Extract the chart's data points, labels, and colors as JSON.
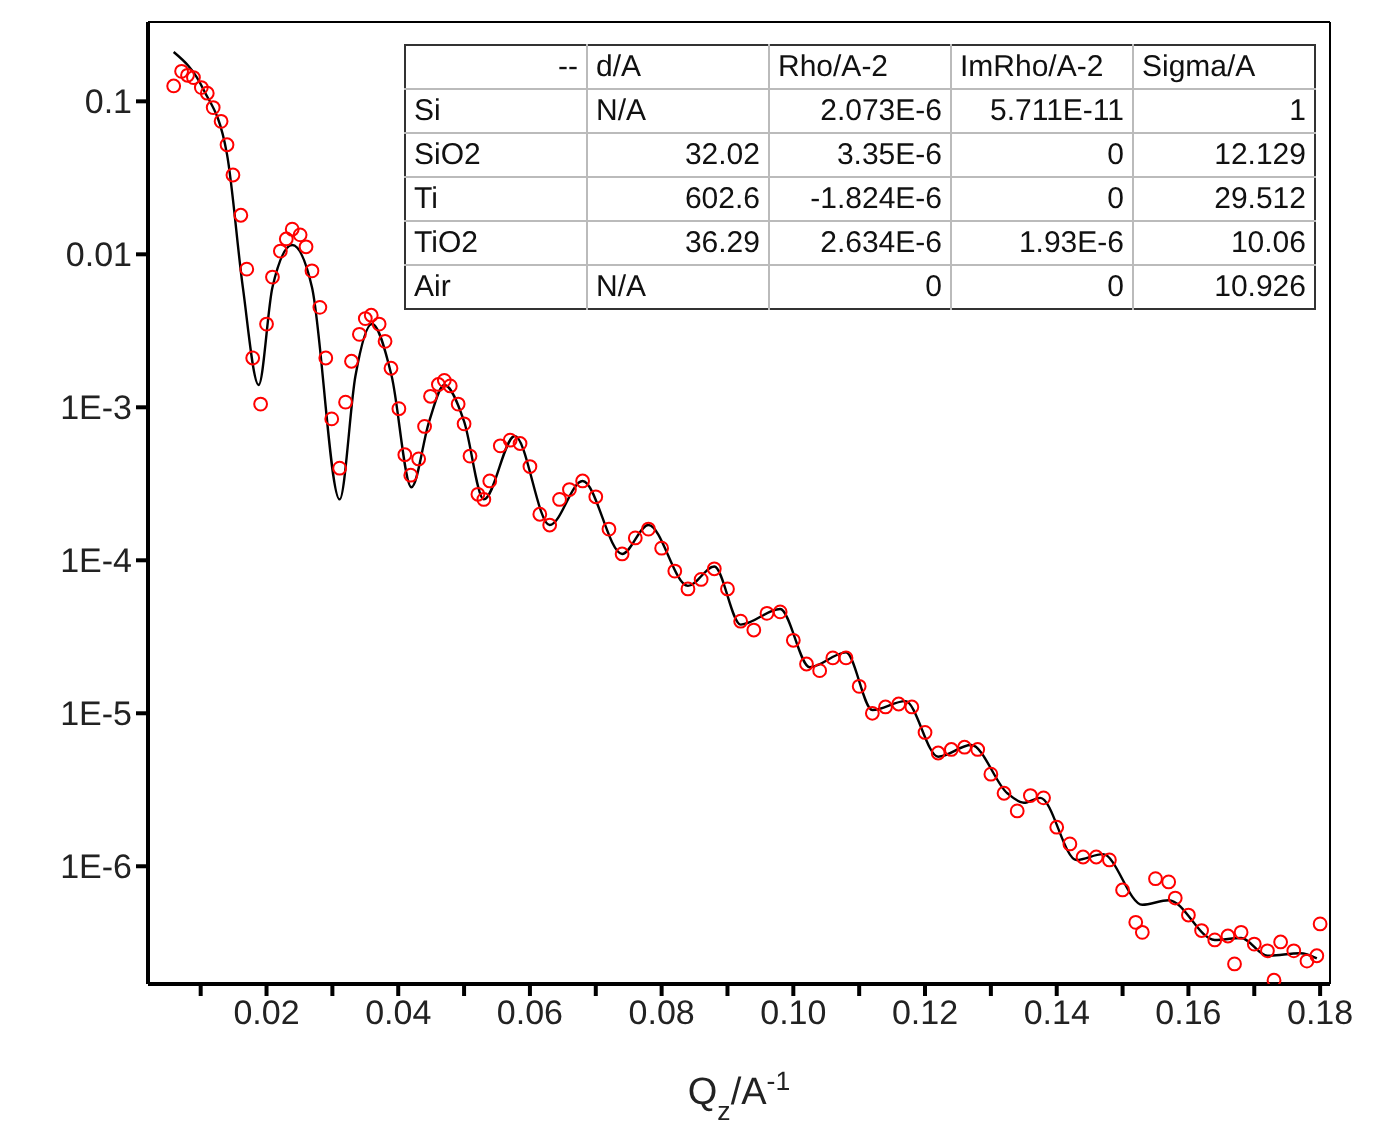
{
  "chart_data": {
    "type": "scatter",
    "xlabel": "Q$_{z}$/A$^{-1}$",
    "log": "y",
    "grid": false,
    "legend": false,
    "xlim": [
      0.002,
      0.1815
    ],
    "ylim": [
      1.7e-07,
      0.33
    ],
    "xticks": [
      {
        "value": 0.01,
        "label": null
      },
      0.02,
      {
        "value": 0.03,
        "label": null
      },
      0.04,
      {
        "value": 0.05,
        "label": null
      },
      0.06,
      {
        "value": 0.07,
        "label": null
      },
      0.08,
      {
        "value": 0.09,
        "label": null
      },
      {
        "value": 0.1,
        "label": "0.10"
      },
      {
        "value": 0.11,
        "label": null
      },
      0.12,
      {
        "value": 0.13,
        "label": null
      },
      0.14,
      {
        "value": 0.15,
        "label": null
      },
      0.16,
      {
        "value": 0.17,
        "label": null
      },
      0.18
    ],
    "yticks": [
      {
        "value": 1e-06,
        "label": "1E-6"
      },
      {
        "value": 1e-05,
        "label": "1E-5"
      },
      {
        "value": 0.0001,
        "label": "1E-4"
      },
      {
        "value": 0.001,
        "label": "1E-3"
      },
      0.01,
      0.1
    ],
    "series": [
      {
        "color": "#ff0000",
        "marker": "circle",
        "x": [
          0.0059,
          0.0071,
          0.008,
          0.0089,
          0.0101,
          0.011,
          0.0119,
          0.0131,
          0.014,
          0.0149,
          0.0161,
          0.017,
          0.0179,
          0.0191,
          0.02,
          0.0209,
          0.0221,
          0.023,
          0.0239,
          0.0251,
          0.026,
          0.0269,
          0.0281,
          0.029,
          0.0299,
          0.0311,
          0.032,
          0.0329,
          0.0341,
          0.035,
          0.0359,
          0.0371,
          0.038,
          0.0389,
          0.0401,
          0.041,
          0.0419,
          0.0431,
          0.044,
          0.0449,
          0.0461,
          0.047,
          0.0479,
          0.0491,
          0.05,
          0.0509,
          0.0521,
          0.053,
          0.0539,
          0.0555,
          0.057,
          0.0585,
          0.06,
          0.0615,
          0.063,
          0.0645,
          0.066,
          0.068,
          0.07,
          0.072,
          0.074,
          0.076,
          0.078,
          0.08,
          0.082,
          0.084,
          0.086,
          0.088,
          0.09,
          0.092,
          0.094,
          0.096,
          0.098,
          0.1,
          0.102,
          0.104,
          0.106,
          0.108,
          0.11,
          0.112,
          0.114,
          0.116,
          0.118,
          0.12,
          0.122,
          0.124,
          0.126,
          0.128,
          0.13,
          0.132,
          0.134,
          0.136,
          0.138,
          0.14,
          0.142,
          0.144,
          0.146,
          0.148,
          0.15,
          0.152,
          0.153,
          0.155,
          0.157,
          0.158,
          0.16,
          0.162,
          0.164,
          0.166,
          0.167,
          0.168,
          0.17,
          0.172,
          0.173,
          0.174,
          0.176,
          0.178,
          0.1795,
          0.18
        ],
        "values": [
          0.126,
          0.157,
          0.148,
          0.143,
          0.123,
          0.113,
          0.091,
          0.074,
          0.052,
          0.033,
          0.018,
          0.008,
          0.0021,
          0.00105,
          0.0035,
          0.0071,
          0.0105,
          0.0126,
          0.0146,
          0.0134,
          0.0112,
          0.0078,
          0.0045,
          0.0021,
          0.00084,
          0.0004,
          0.00108,
          0.002,
          0.003,
          0.0038,
          0.004,
          0.0035,
          0.0027,
          0.0018,
          0.00098,
          0.00049,
          0.00036,
          0.00046,
          0.00075,
          0.00118,
          0.00141,
          0.0015,
          0.00138,
          0.00105,
          0.00078,
          0.00048,
          0.00027,
          0.00025,
          0.00033,
          0.00056,
          0.00061,
          0.00058,
          0.00041,
          0.0002,
          0.00017,
          0.00025,
          0.00029,
          0.00033,
          0.00026,
          0.00016,
          0.00011,
          0.00014,
          0.00016,
          0.00012,
          8.5e-05,
          6.5e-05,
          7.5e-05,
          8.8e-05,
          6.5e-05,
          4e-05,
          3.5e-05,
          4.5e-05,
          4.6e-05,
          3e-05,
          2.1e-05,
          1.9e-05,
          2.3e-05,
          2.3e-05,
          1.5e-05,
          1e-05,
          1.1e-05,
          1.15e-05,
          1.1e-05,
          7.5e-06,
          5.5e-06,
          5.8e-06,
          6e-06,
          5.8e-06,
          4e-06,
          3e-06,
          2.3e-06,
          2.9e-06,
          2.8e-06,
          1.8e-06,
          1.4e-06,
          1.15e-06,
          1.15e-06,
          1.1e-06,
          7e-07,
          4.3e-07,
          3.7e-07,
          8.3e-07,
          7.9e-07,
          6.2e-07,
          4.8e-07,
          3.8e-07,
          3.3e-07,
          3.5e-07,
          2.3e-07,
          3.7e-07,
          3.1e-07,
          2.8e-07,
          1.8e-07,
          3.2e-07,
          2.8e-07,
          2.4e-07,
          2.6e-07,
          4.2e-07
        ]
      },
      {
        "type": "line",
        "color": "#000000",
        "marker": "none",
        "x": [
          0.0059,
          0.0104,
          0.014,
          0.0164,
          0.0188,
          0.0209,
          0.0239,
          0.0269,
          0.0311,
          0.0335,
          0.036,
          0.039,
          0.042,
          0.0447,
          0.047,
          0.05,
          0.053,
          0.0577,
          0.063,
          0.068,
          0.074,
          0.078,
          0.084,
          0.088,
          0.092,
          0.098,
          0.1025,
          0.108,
          0.112,
          0.117,
          0.122,
          0.127,
          0.1325,
          0.135,
          0.1375,
          0.143,
          0.147,
          0.153,
          0.157,
          0.164,
          0.168,
          0.172,
          0.177,
          0.1795
        ],
        "values": [
          0.21,
          0.12,
          0.045,
          0.0061,
          0.0014,
          0.0061,
          0.0115,
          0.0061,
          0.00025,
          0.0016,
          0.0035,
          0.0016,
          0.0003,
          0.00081,
          0.0014,
          0.00081,
          0.00025,
          0.00065,
          0.00017,
          0.00033,
          0.00011,
          0.00017,
          6.8e-05,
          9.1e-05,
          3.8e-05,
          4.8e-05,
          2e-05,
          2.5e-05,
          1.05e-05,
          1.2e-05,
          5.2e-06,
          6.2e-06,
          3e-06,
          2.6e-06,
          2.8e-06,
          1.1e-06,
          1.2e-06,
          5.6e-07,
          6e-07,
          3.3e-07,
          3.4e-07,
          2.6e-07,
          2.7e-07,
          2.5e-07
        ]
      }
    ],
    "annotations": [
      "--",
      "d/A",
      "Rho/A-2",
      "ImRho/A-2",
      "Sigma/A",
      "Si",
      "N/A",
      "2.073E-6",
      "5.711E-11",
      "1",
      "SiO2",
      "32.02",
      "3.35E-6",
      "0",
      "12.129",
      "Ti",
      "602.6",
      "-1.824E-6",
      "0",
      "29.512",
      "TiO2",
      "36.29",
      "2.634E-6",
      "1.93E-6",
      "10.06",
      "Air",
      "N/A",
      "0",
      "0",
      "10.926"
    ]
  }
}
